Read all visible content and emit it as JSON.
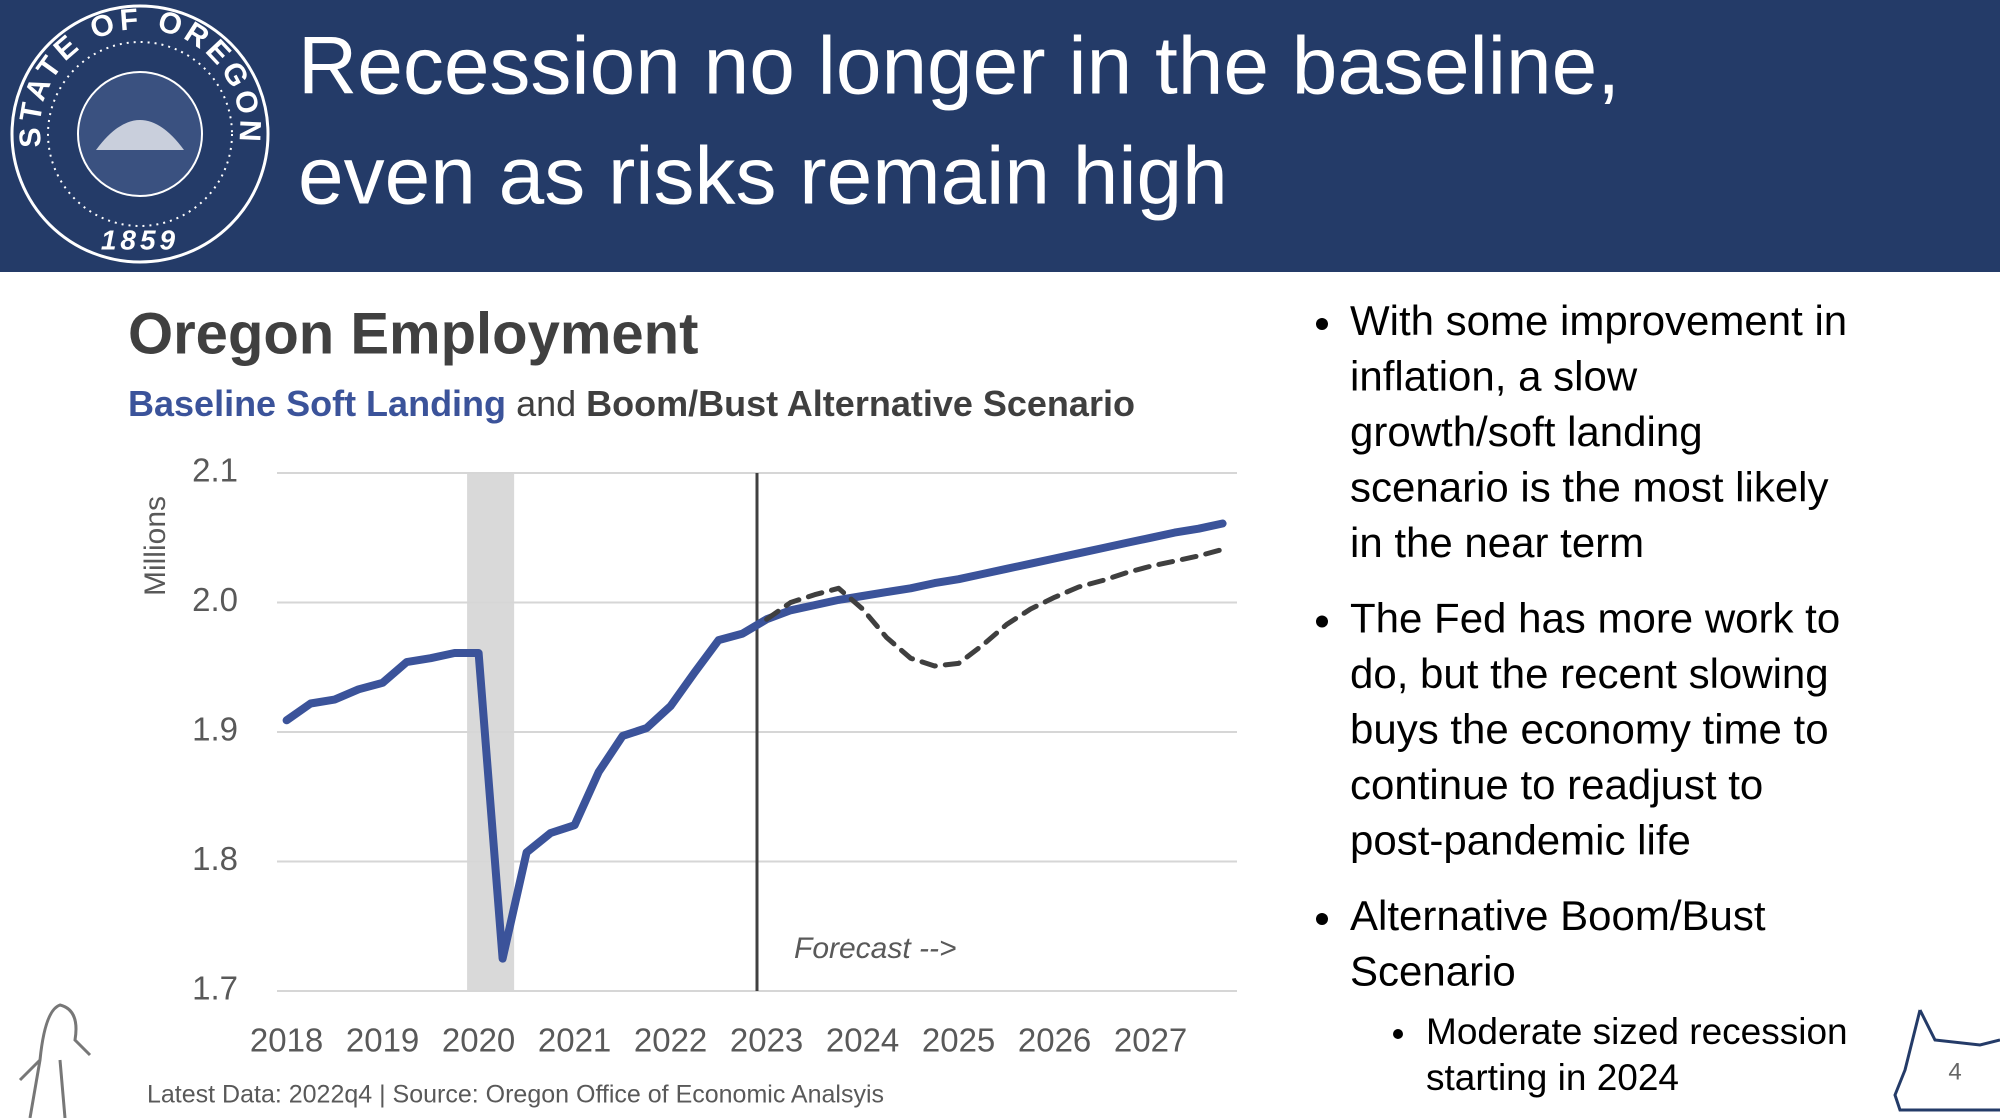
{
  "header": {
    "title_lines": [
      "Recession no longer in the baseline,",
      "even as risks remain high"
    ],
    "seal": {
      "ring_text": "STATE OF OREGON",
      "year": "1859"
    }
  },
  "chart_data": {
    "type": "line",
    "title": "Oregon Employment",
    "subtitle_connector": "and",
    "y_label": "Millions",
    "source": "Latest Data: 2022q4 | Source: Oregon Office of Economic Analsyis",
    "x": [
      2018,
      2018.25,
      2018.5,
      2018.75,
      2019,
      2019.25,
      2019.5,
      2019.75,
      2020,
      2020.25,
      2020.5,
      2020.75,
      2021,
      2021.25,
      2021.5,
      2021.75,
      2022,
      2022.25,
      2022.5,
      2022.75,
      2023,
      2023.25,
      2023.5,
      2023.75,
      2024,
      2024.25,
      2024.5,
      2024.75,
      2025,
      2025.25,
      2025.5,
      2025.75,
      2026,
      2026.25,
      2026.5,
      2026.75,
      2027,
      2027.25,
      2027.5,
      2027.75
    ],
    "series": [
      {
        "name": "Baseline Soft Landing",
        "color": "#3b539a",
        "style": "solid",
        "values": [
          1.909,
          1.922,
          1.925,
          1.933,
          1.938,
          1.954,
          1.957,
          1.961,
          1.961,
          1.725,
          1.807,
          1.822,
          1.828,
          1.869,
          1.897,
          1.903,
          1.92,
          1.946,
          1.971,
          1.976,
          1.987,
          1.994,
          1.998,
          2.002,
          2.005,
          2.008,
          2.011,
          2.015,
          2.018,
          2.022,
          2.026,
          2.03,
          2.034,
          2.038,
          2.042,
          2.046,
          2.05,
          2.054,
          2.057,
          2.061
        ]
      },
      {
        "name": "Boom/Bust Alternative Scenario",
        "color": "#3f3f3f",
        "style": "dashed",
        "values": [
          null,
          null,
          null,
          null,
          null,
          null,
          null,
          null,
          null,
          null,
          null,
          null,
          null,
          null,
          null,
          null,
          null,
          null,
          null,
          null,
          1.987,
          2.0,
          2.006,
          2.011,
          1.995,
          1.973,
          1.957,
          1.951,
          1.953,
          1.967,
          1.983,
          1.995,
          2.004,
          2.012,
          2.017,
          2.023,
          2.028,
          2.032,
          2.036,
          2.041
        ]
      }
    ],
    "xlim": [
      2017.9,
      2027.9
    ],
    "xticks": [
      2018,
      2019,
      2020,
      2021,
      2022,
      2023,
      2024,
      2025,
      2026,
      2027
    ],
    "ylim": [
      1.7,
      2.1
    ],
    "yticks": [
      1.7,
      1.8,
      1.9,
      {
        "value": 2,
        "label": "2.0"
      },
      2.1
    ],
    "grid": true,
    "recession": [
      2019.88,
      2020.37
    ],
    "recession_color": "#d9d9d9",
    "forecast_start": 2022.9,
    "forecast_label": "Forecast -->"
  },
  "bullets": [
    {
      "lines": [
        "With some improvement in",
        "inflation, a slow",
        "growth/soft landing",
        "scenario is the most likely",
        "in the near term"
      ]
    },
    {
      "lines": [
        "The Fed has more work to",
        "do, but the recent slowing",
        "buys the economy time to",
        "continue to readjust to",
        "post-pandemic life"
      ]
    },
    {
      "lines": [
        "Alternative Boom/Bust",
        "Scenario"
      ],
      "sub": [
        {
          "lines": [
            "Moderate sized recession",
            "starting in 2024"
          ]
        }
      ]
    }
  ],
  "slide_number": "4"
}
